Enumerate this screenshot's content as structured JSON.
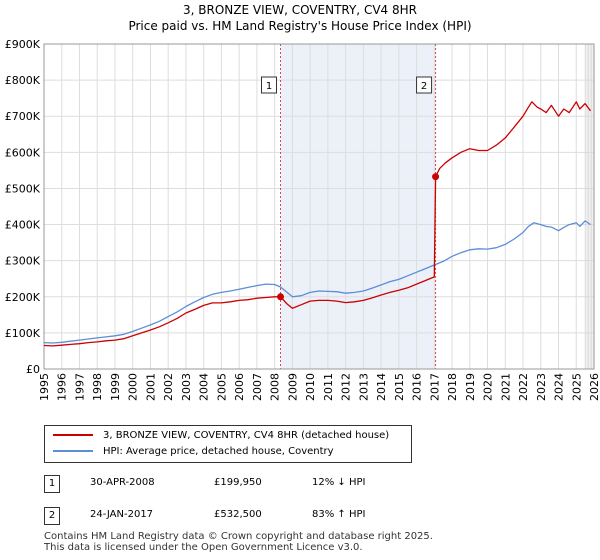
{
  "title_line1": "3, BRONZE VIEW, COVENTRY, CV4 8HR",
  "title_line2": "Price paid vs. HM Land Registry's House Price Index (HPI)",
  "colors": {
    "property": "#cc0000",
    "hpi": "#5b8ed6",
    "marker_line": "#cc0000",
    "shade": "#dde6f5",
    "grid": "#dddddd"
  },
  "chart_data": {
    "type": "line",
    "title": "3, BRONZE VIEW, COVENTRY, CV4 8HR",
    "subtitle": "Price paid vs. HM Land Registry's House Price Index (HPI)",
    "xlabel": "",
    "ylabel": "",
    "xlim": [
      1995,
      2026
    ],
    "ylim": [
      0,
      900000
    ],
    "grid": true,
    "x_ticks": [
      "1995",
      "1996",
      "1997",
      "1998",
      "1999",
      "2000",
      "2001",
      "2002",
      "2003",
      "2004",
      "2005",
      "2006",
      "2007",
      "2008",
      "2009",
      "2010",
      "2011",
      "2012",
      "2013",
      "2014",
      "2015",
      "2016",
      "2017",
      "2018",
      "2019",
      "2020",
      "2021",
      "2022",
      "2023",
      "2024",
      "2025",
      "2026"
    ],
    "y_ticks": [
      {
        "value": 0,
        "label": "£0"
      },
      {
        "value": 100000,
        "label": "£100K"
      },
      {
        "value": 200000,
        "label": "£200K"
      },
      {
        "value": 300000,
        "label": "£300K"
      },
      {
        "value": 400000,
        "label": "£400K"
      },
      {
        "value": 500000,
        "label": "£500K"
      },
      {
        "value": 600000,
        "label": "£600K"
      },
      {
        "value": 700000,
        "label": "£700K"
      },
      {
        "value": 800000,
        "label": "£800K"
      },
      {
        "value": 900000,
        "label": "£900K"
      }
    ],
    "series": [
      {
        "name": "3, BRONZE VIEW, COVENTRY, CV4 8HR (detached house)",
        "color": "#cc0000",
        "x": [
          1995.0,
          1995.5,
          1996.0,
          1996.5,
          1997.0,
          1997.5,
          1998.0,
          1998.5,
          1999.0,
          1999.5,
          2000.0,
          2000.5,
          2001.0,
          2001.5,
          2002.0,
          2002.5,
          2003.0,
          2003.5,
          2004.0,
          2004.5,
          2005.0,
          2005.5,
          2006.0,
          2006.5,
          2007.0,
          2007.5,
          2008.0,
          2008.33,
          2008.7,
          2009.0,
          2009.2,
          2009.5,
          2010.0,
          2010.5,
          2011.0,
          2011.5,
          2012.0,
          2012.5,
          2013.0,
          2013.5,
          2014.0,
          2014.5,
          2015.0,
          2015.5,
          2016.0,
          2016.5,
          2017.0,
          2017.07,
          2017.3,
          2017.6,
          2018.0,
          2018.5,
          2019.0,
          2019.5,
          2020.0,
          2020.5,
          2021.0,
          2021.5,
          2022.0,
          2022.3,
          2022.5,
          2022.8,
          2023.0,
          2023.3,
          2023.6,
          2024.0,
          2024.3,
          2024.6,
          2025.0,
          2025.2,
          2025.5,
          2025.8
        ],
        "values": [
          65000,
          64000,
          66000,
          68000,
          70000,
          73000,
          75000,
          78000,
          80000,
          84000,
          92000,
          100000,
          108000,
          117000,
          128000,
          140000,
          155000,
          165000,
          176000,
          183000,
          183000,
          186000,
          190000,
          192000,
          196000,
          198000,
          200000,
          199950,
          180000,
          168000,
          172000,
          178000,
          188000,
          190000,
          190000,
          188000,
          184000,
          186000,
          190000,
          197000,
          205000,
          212000,
          218000,
          225000,
          235000,
          245000,
          255000,
          532500,
          555000,
          570000,
          585000,
          600000,
          610000,
          605000,
          605000,
          620000,
          640000,
          670000,
          700000,
          725000,
          740000,
          725000,
          720000,
          710000,
          730000,
          700000,
          720000,
          710000,
          740000,
          720000,
          735000,
          715000
        ]
      },
      {
        "name": "HPI: Average price, detached house, Coventry",
        "color": "#5b8ed6",
        "x": [
          1995.0,
          1995.5,
          1996.0,
          1996.5,
          1997.0,
          1997.5,
          1998.0,
          1998.5,
          1999.0,
          1999.5,
          2000.0,
          2000.5,
          2001.0,
          2001.5,
          2002.0,
          2002.5,
          2003.0,
          2003.5,
          2004.0,
          2004.5,
          2005.0,
          2005.5,
          2006.0,
          2006.5,
          2007.0,
          2007.5,
          2008.0,
          2008.33,
          2008.7,
          2009.0,
          2009.5,
          2010.0,
          2010.5,
          2011.0,
          2011.5,
          2012.0,
          2012.5,
          2013.0,
          2013.5,
          2014.0,
          2014.5,
          2015.0,
          2015.5,
          2016.0,
          2016.5,
          2017.0,
          2017.5,
          2018.0,
          2018.5,
          2019.0,
          2019.5,
          2020.0,
          2020.5,
          2021.0,
          2021.5,
          2022.0,
          2022.3,
          2022.6,
          2023.0,
          2023.3,
          2023.6,
          2024.0,
          2024.3,
          2024.6,
          2025.0,
          2025.2,
          2025.5,
          2025.8
        ],
        "values": [
          73000,
          72000,
          74000,
          77000,
          80000,
          83000,
          86000,
          89000,
          92000,
          96000,
          104000,
          113000,
          122000,
          132000,
          145000,
          158000,
          173000,
          186000,
          198000,
          207000,
          212000,
          216000,
          221000,
          226000,
          231000,
          235000,
          234000,
          227000,
          212000,
          200000,
          203000,
          212000,
          216000,
          215000,
          214000,
          210000,
          212000,
          216000,
          224000,
          233000,
          242000,
          248000,
          258000,
          268000,
          278000,
          288000,
          298000,
          312000,
          322000,
          330000,
          333000,
          332000,
          336000,
          345000,
          360000,
          378000,
          395000,
          405000,
          400000,
          395000,
          393000,
          383000,
          392000,
          400000,
          405000,
          395000,
          410000,
          400000
        ]
      }
    ],
    "annotations": [
      {
        "label": "1",
        "x": 2008.33,
        "y": 199950
      },
      {
        "label": "2",
        "x": 2017.07,
        "y": 532500
      }
    ],
    "future_shade_from": 2025.5
  },
  "legend": {
    "property_label": "3, BRONZE VIEW, COVENTRY, CV4 8HR (detached house)",
    "hpi_label": "HPI: Average price, detached house, Coventry"
  },
  "transactions": [
    {
      "num": "1",
      "date": "30-APR-2008",
      "price": "£199,950",
      "hpi": "12% ↓ HPI"
    },
    {
      "num": "2",
      "date": "24-JAN-2017",
      "price": "£532,500",
      "hpi": "83% ↑ HPI"
    }
  ],
  "footer_line1": "Contains HM Land Registry data © Crown copyright and database right 2025.",
  "footer_line2": "This data is licensed under the Open Government Licence v3.0."
}
